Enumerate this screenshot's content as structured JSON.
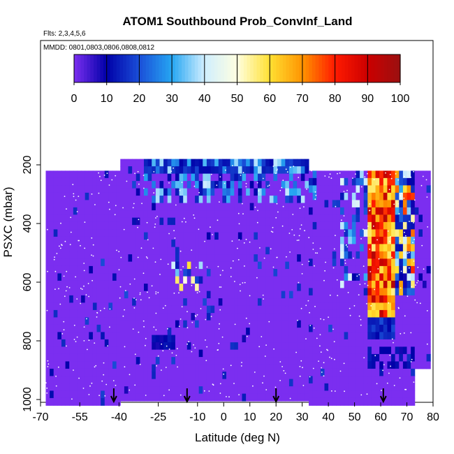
{
  "chart_data": {
    "type": "heatmap",
    "title": "ATOM1 Southbound Prob_ConvInf_Land",
    "notes": {
      "flights": "Flts: 2,3,4,5,6",
      "dates": "MMDD: 0801,0803,0806,0808,0812"
    },
    "xlabel": "Latitude (deg N)",
    "ylabel": "PSXC (mbar)",
    "xlim": [
      -70,
      80
    ],
    "ylim": [
      1000,
      50
    ],
    "y_reversed": true,
    "x_ticks": [
      -70,
      -55,
      -40,
      -25,
      -10,
      0,
      10,
      20,
      30,
      40,
      50,
      60,
      70,
      80
    ],
    "y_ticks": [
      200,
      400,
      600,
      800,
      1000
    ],
    "colorbar": {
      "min": 0,
      "max": 100,
      "ticks": [
        0,
        10,
        20,
        30,
        40,
        50,
        60,
        70,
        80,
        90,
        100
      ],
      "colors": [
        "#7b2ef0",
        "#0000a8",
        "#1a4fd8",
        "#26a6f2",
        "#cfeeff",
        "#ffffe0",
        "#ffe033",
        "#ff9400",
        "#ff1a00",
        "#cc0000",
        "#9a1010"
      ]
    },
    "value_ranges": {
      "background": 0,
      "tropics_upper_0_to_30N": [
        10,
        40
      ],
      "northern_lats_55_to_65N_column": [
        50,
        95
      ],
      "southern_hemisphere_pockets": [
        10,
        30
      ]
    },
    "arrows_at_latitude": [
      -42,
      -14,
      20,
      61
    ]
  }
}
